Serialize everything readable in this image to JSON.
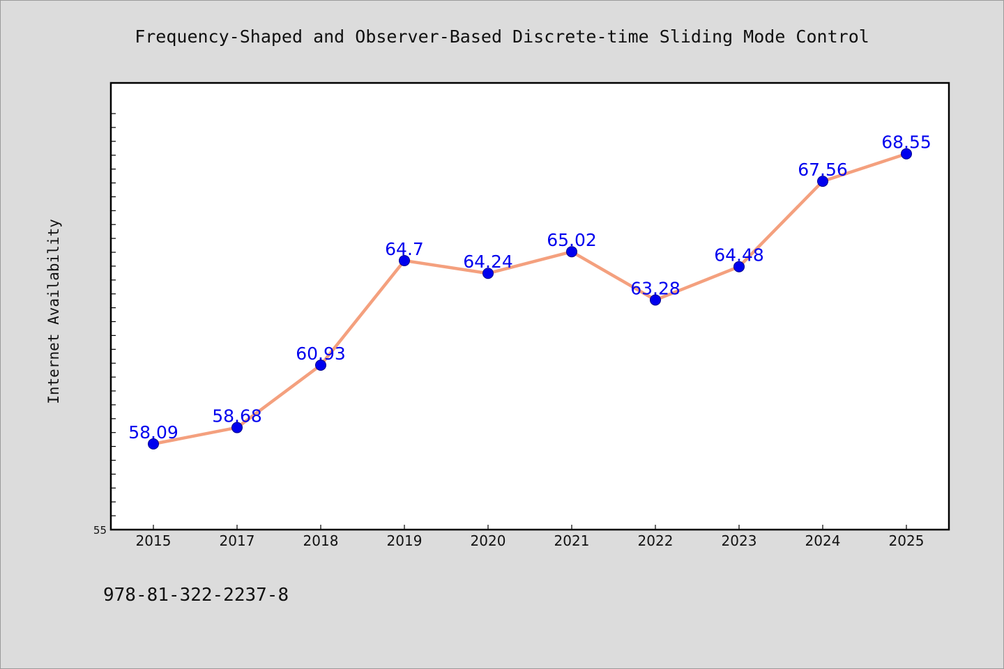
{
  "chart_data": {
    "type": "line",
    "title": "Frequency-Shaped and Observer-Based Discrete-time Sliding Mode Control",
    "xlabel": "",
    "ylabel": "Internet Availability",
    "categories": [
      "2015",
      "2017",
      "2018",
      "2019",
      "2020",
      "2021",
      "2022",
      "2023",
      "2024",
      "2025"
    ],
    "values": [
      58.09,
      58.68,
      60.93,
      64.7,
      64.24,
      65.02,
      63.28,
      64.48,
      67.56,
      68.55
    ],
    "data_labels": [
      "58.09",
      "58.68",
      "60.93",
      "64.7",
      "64.24",
      "65.02",
      "63.28",
      "64.48",
      "67.56",
      "68.55"
    ],
    "ylim": [
      55,
      70
    ],
    "y_tick_labels": [
      "55"
    ],
    "grid": false,
    "legend": "none",
    "colors": {
      "line": "#f4a07e",
      "marker": "#0000ee",
      "label": "#0000ee"
    }
  },
  "footer_text": "978-81-322-2237-8"
}
